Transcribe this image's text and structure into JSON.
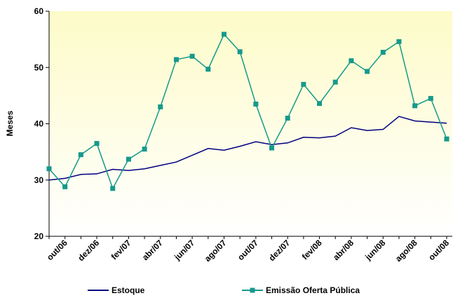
{
  "chart_data": {
    "type": "line",
    "categories": [
      null,
      "out/06",
      null,
      "dez/06",
      null,
      "fev/07",
      null,
      "abr/07",
      null,
      "jun/07",
      null,
      "ago/07",
      null,
      "out/07",
      null,
      "dez/07",
      null,
      "fev/08",
      null,
      "abr/08",
      null,
      "jun/08",
      null,
      "ago/08",
      null,
      "out/08"
    ],
    "y_label": "Meses",
    "series": [
      {
        "name": "Estoque",
        "color": "#000080",
        "marker": false,
        "values": [
          30.0,
          30.3,
          31.0,
          31.1,
          31.9,
          31.7,
          32.0,
          32.6,
          33.2,
          34.4,
          35.6,
          35.3,
          36.0,
          36.8,
          36.3,
          36.6,
          37.6,
          37.5,
          37.8,
          39.3,
          38.8,
          39.0,
          41.3,
          40.5,
          40.3,
          40.1
        ]
      },
      {
        "name": "Emissão Oferta Pública",
        "color": "#16998c",
        "marker": true,
        "values": [
          32.0,
          28.8,
          34.5,
          36.5,
          28.5,
          33.7,
          35.5,
          43.0,
          51.4,
          52.0,
          49.7,
          55.9,
          52.8,
          43.5,
          35.7,
          41.0,
          47.0,
          43.6,
          47.4,
          51.2,
          49.3,
          52.7,
          54.6,
          43.2,
          44.5,
          37.3
        ]
      }
    ],
    "ylim": [
      20,
      60
    ],
    "yticks": [
      20,
      30,
      40,
      50,
      60
    ],
    "legend": "bottom"
  }
}
